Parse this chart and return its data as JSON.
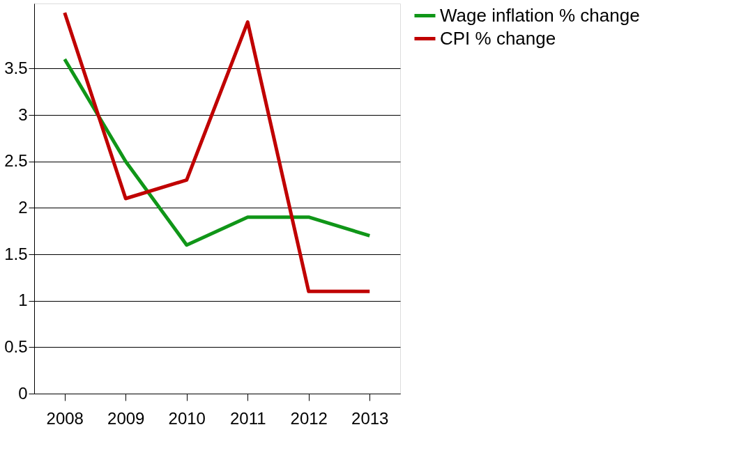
{
  "chart_data": {
    "type": "line",
    "categories": [
      "2008",
      "2009",
      "2010",
      "2011",
      "2012",
      "2013"
    ],
    "series": [
      {
        "name": "Wage inflation % change",
        "color": "#109618",
        "values": [
          3.6,
          2.5,
          1.6,
          1.9,
          1.9,
          1.7
        ]
      },
      {
        "name": "CPI % change",
        "color": "#c00000",
        "values": [
          4.1,
          2.1,
          2.3,
          4.0,
          1.1,
          1.1
        ]
      }
    ],
    "ylim": [
      0,
      4.2
    ],
    "yticks": [
      0,
      0.5,
      1,
      1.5,
      2,
      2.5,
      3,
      3.5
    ],
    "grid": "y",
    "legend": "right",
    "marker": "none",
    "line_style": "solid"
  }
}
